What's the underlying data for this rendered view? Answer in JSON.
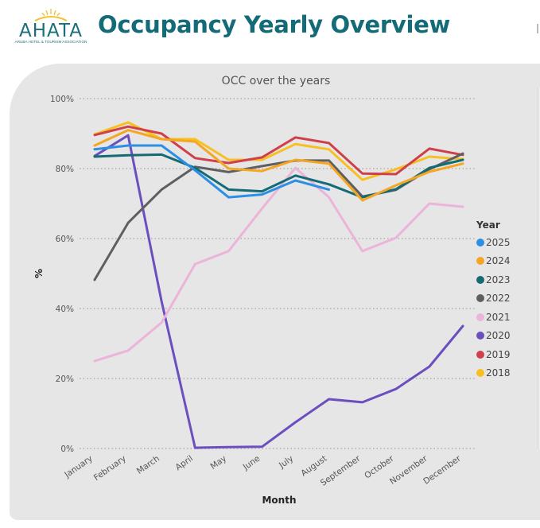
{
  "header": {
    "logo_text": "AHATA",
    "logo_subtext": "ARUBA HOTEL & TOURISM ASSOCIATION",
    "title": "Occupancy Yearly Overview"
  },
  "colors": {
    "title": "#136b77",
    "panel_bg": "#e6e6e6"
  },
  "chart_data": {
    "type": "line",
    "title": "OCC over the years",
    "xlabel": "Month",
    "ylabel": "%",
    "ylim": [
      0,
      100
    ],
    "yticks": [
      0,
      20,
      40,
      60,
      80,
      100
    ],
    "ytick_labels": [
      "0%",
      "20%",
      "40%",
      "60%",
      "80%",
      "100%"
    ],
    "grid": true,
    "legend_title": "Year",
    "legend_position": "right",
    "categories": [
      "January",
      "February",
      "March",
      "April",
      "May",
      "June",
      "July",
      "August",
      "September",
      "October",
      "November",
      "December"
    ],
    "series": [
      {
        "name": "2025",
        "color": "#2b8fe6",
        "values": [
          85.5,
          86.6,
          86.6,
          79.5,
          71.8,
          72.6,
          76.6,
          74.0,
          null,
          null,
          null,
          null
        ]
      },
      {
        "name": "2024",
        "color": "#f5a623",
        "values": [
          86.6,
          91.0,
          88.4,
          87.7,
          80.0,
          79.3,
          82.5,
          81.4,
          70.9,
          75.2,
          79.1,
          81.4
        ]
      },
      {
        "name": "2023",
        "color": "#146b74",
        "values": [
          83.4,
          83.8,
          84.0,
          80.2,
          74.0,
          73.5,
          78.0,
          75.5,
          71.8,
          74.1,
          80.2,
          82.5
        ]
      },
      {
        "name": "2022",
        "color": "#5f5f5f",
        "values": [
          48.2,
          64.5,
          74.0,
          80.5,
          79.0,
          80.7,
          82.3,
          82.3,
          72.0,
          73.9,
          79.8,
          84.3
        ]
      },
      {
        "name": "2021",
        "color": "#ebb4d8",
        "values": [
          25.0,
          28.0,
          36.0,
          52.7,
          56.4,
          68.6,
          80.2,
          71.8,
          56.4,
          60.2,
          70.0,
          69.1
        ]
      },
      {
        "name": "2020",
        "color": "#6b4fbf",
        "values": [
          83.6,
          89.5,
          42.0,
          0.2,
          0.4,
          0.5,
          7.5,
          14.1,
          13.2,
          17.0,
          23.4,
          35.0
        ]
      },
      {
        "name": "2019",
        "color": "#d0404a",
        "values": [
          89.6,
          92.0,
          90.0,
          83.0,
          81.6,
          83.2,
          88.9,
          87.3,
          78.6,
          78.4,
          85.7,
          83.9
        ]
      },
      {
        "name": "2018",
        "color": "#f7c020",
        "values": [
          89.8,
          93.2,
          88.4,
          88.4,
          82.5,
          82.5,
          87.0,
          85.5,
          76.8,
          79.8,
          83.4,
          82.7
        ]
      }
    ]
  }
}
